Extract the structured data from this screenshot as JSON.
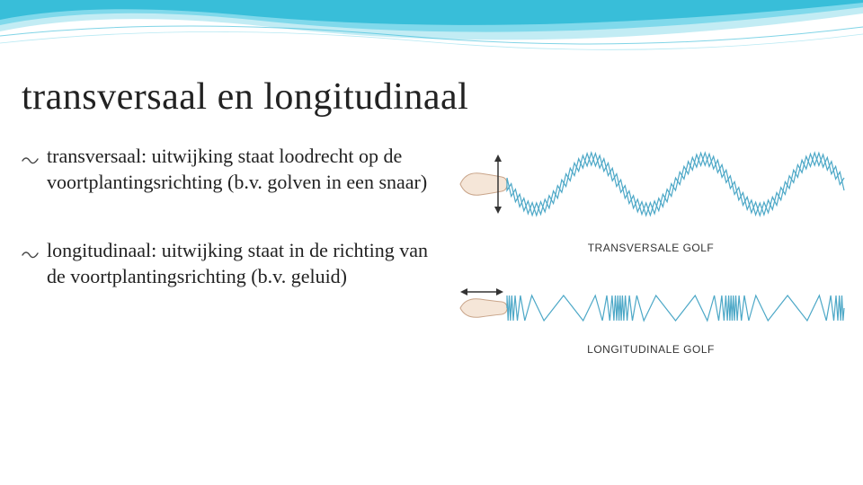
{
  "header": {
    "swish_color_1": "#2bb8d6",
    "swish_color_2": "#6fd4e8",
    "swish_color_3": "#a8e4f0",
    "bg": "#ffffff"
  },
  "title": "transversaal en longitudinaal",
  "title_fontsize": 42,
  "title_color": "#222222",
  "bullets": [
    {
      "text": "transversaal: uitwijking staat loodrecht op de voortplantingsrichting (b.v. golven in een snaar)"
    },
    {
      "text": "longitudinaal: uitwijking staat in de richting van de voortplantingsrichting (b.v. geluid)"
    }
  ],
  "bullet_fontsize": 22,
  "bullet_color": "#222222",
  "bullet_icon_color": "#444444",
  "figure": {
    "transverse": {
      "caption": "TRANSVERSALE GOLF",
      "spring_color": "#4da8c7",
      "hand_outline": "#c9a58a",
      "hand_fill": "#f5e6d8",
      "arrow_color": "#333333",
      "amplitude": 28,
      "periods": 3,
      "coil_density": 80
    },
    "longitudinal": {
      "caption": "LONGITUDINALE GOLF",
      "spring_color": "#4da8c7",
      "hand_outline": "#c9a58a",
      "hand_fill": "#f5e6d8",
      "arrow_color": "#333333",
      "coils": 70,
      "amplitude": 14,
      "compressions": 3
    },
    "caption_fontsize": 12,
    "caption_color": "#333333"
  }
}
